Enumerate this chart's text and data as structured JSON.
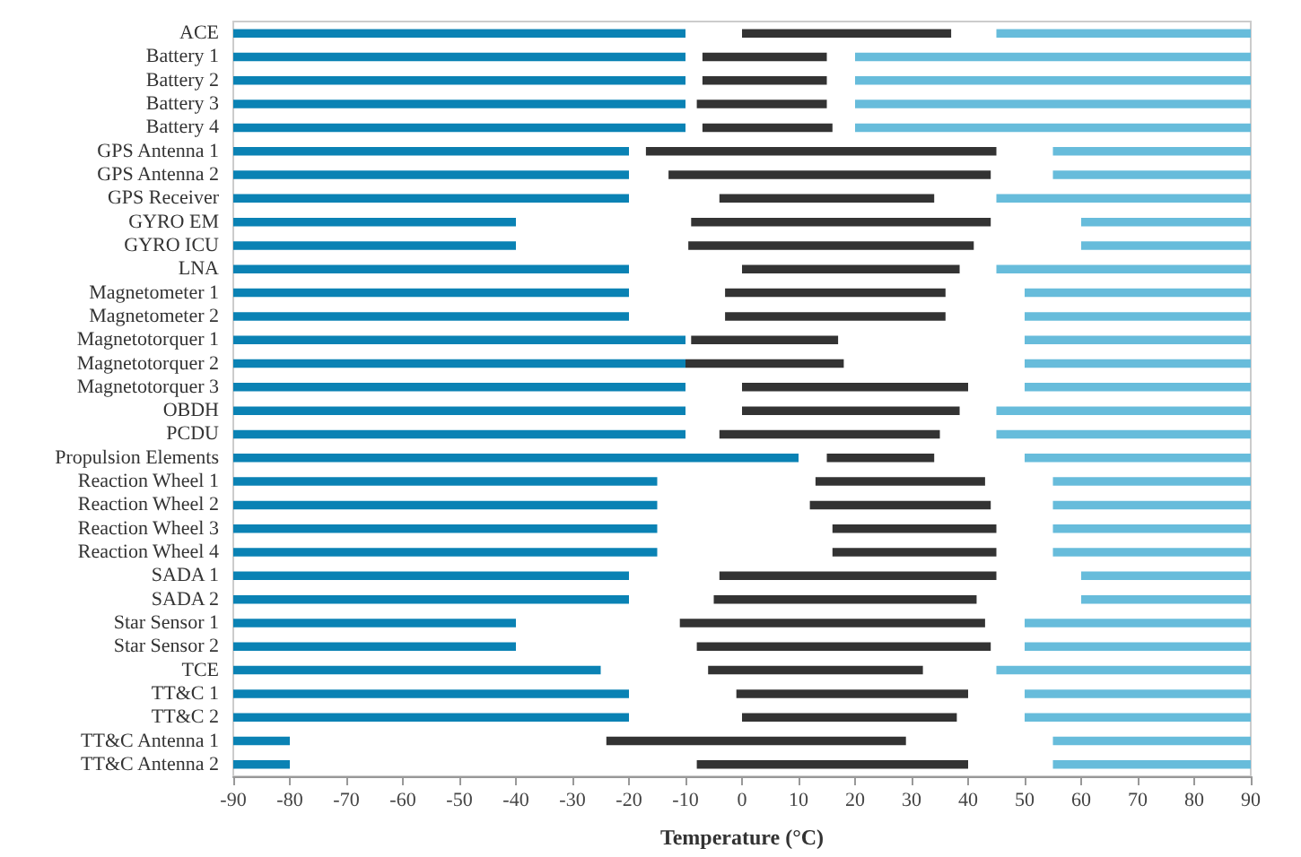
{
  "chart_data": {
    "type": "bar",
    "orientation": "horizontal",
    "xlabel": "Temperature (°C)",
    "categories": [
      "ACE",
      "Battery 1",
      "Battery 2",
      "Battery 3",
      "Battery 4",
      "GPS Antenna 1",
      "GPS Antenna 2",
      "GPS Receiver",
      "GYRO EM",
      "GYRO ICU",
      "LNA",
      "Magnetometer 1",
      "Magnetometer 2",
      "Magnetotorquer 1",
      "Magnetotorquer 2",
      "Magnetotorquer 3",
      "OBDH",
      "PCDU",
      "Propulsion Elements",
      "Reaction Wheel 1",
      "Reaction Wheel 2",
      "Reaction Wheel 3",
      "Reaction Wheel 4",
      "SADA 1",
      "SADA 2",
      "Star Sensor 1",
      "Star Sensor 2",
      "TCE",
      "TT&C 1",
      "TT&C 2",
      "TT&C Antenna 1",
      "TT&C Antenna 2"
    ],
    "series": [
      {
        "color": "#0a82b4",
        "base": [
          -90,
          -90,
          -90,
          -90,
          -90,
          -90,
          -90,
          -90,
          -90,
          -90,
          -90,
          -90,
          -90,
          -90,
          -90,
          -90,
          -90,
          -90,
          -90,
          -90,
          -90,
          -90,
          -90,
          -90,
          -90,
          -90,
          -90,
          -90,
          -90,
          -90,
          -90,
          -90
        ],
        "values": [
          80,
          80,
          80,
          80,
          80,
          70,
          70,
          70,
          50,
          50,
          70,
          70,
          70,
          80,
          80,
          80,
          80,
          80,
          100,
          75,
          75,
          75,
          75,
          70,
          70,
          50,
          50,
          65,
          70,
          70,
          10,
          10
        ]
      },
      {
        "color": "#333333",
        "base": [
          0,
          -7,
          -7,
          -8,
          -7,
          -17,
          -13,
          -4,
          -9,
          -9.5,
          0,
          -3,
          -3,
          -9,
          -10,
          0,
          0,
          -4,
          15,
          13,
          12,
          16,
          16,
          -4,
          -5,
          -11,
          -8,
          -6,
          -1,
          0,
          -24,
          -8
        ],
        "values": [
          37,
          22,
          22,
          23,
          23,
          62,
          57,
          38,
          53,
          50.5,
          38.5,
          39,
          39,
          26,
          28,
          40,
          38.5,
          39,
          19,
          30,
          32,
          29,
          29,
          49,
          46.5,
          54,
          52,
          38,
          41,
          38,
          53,
          48
        ]
      },
      {
        "color": "#67bcdb",
        "base": [
          45,
          20,
          20,
          20,
          20,
          55,
          55,
          45,
          60,
          60,
          45,
          50,
          50,
          50,
          50,
          50,
          45,
          45,
          50,
          55,
          55,
          55,
          55,
          60,
          60,
          50,
          50,
          45,
          50,
          50,
          55,
          55
        ],
        "values": [
          45,
          70,
          70,
          70,
          70,
          35,
          35,
          45,
          30,
          30,
          45,
          40,
          40,
          40,
          40,
          40,
          45,
          45,
          40,
          35,
          35,
          35,
          35,
          30,
          30,
          40,
          40,
          45,
          40,
          40,
          35,
          35
        ]
      }
    ],
    "xlim": [
      -90,
      90
    ],
    "xticks": [
      -90,
      -80,
      -70,
      -60,
      -50,
      -40,
      -30,
      -20,
      -10,
      0,
      10,
      20,
      30,
      40,
      50,
      60,
      70,
      80,
      90
    ],
    "grid": false
  }
}
